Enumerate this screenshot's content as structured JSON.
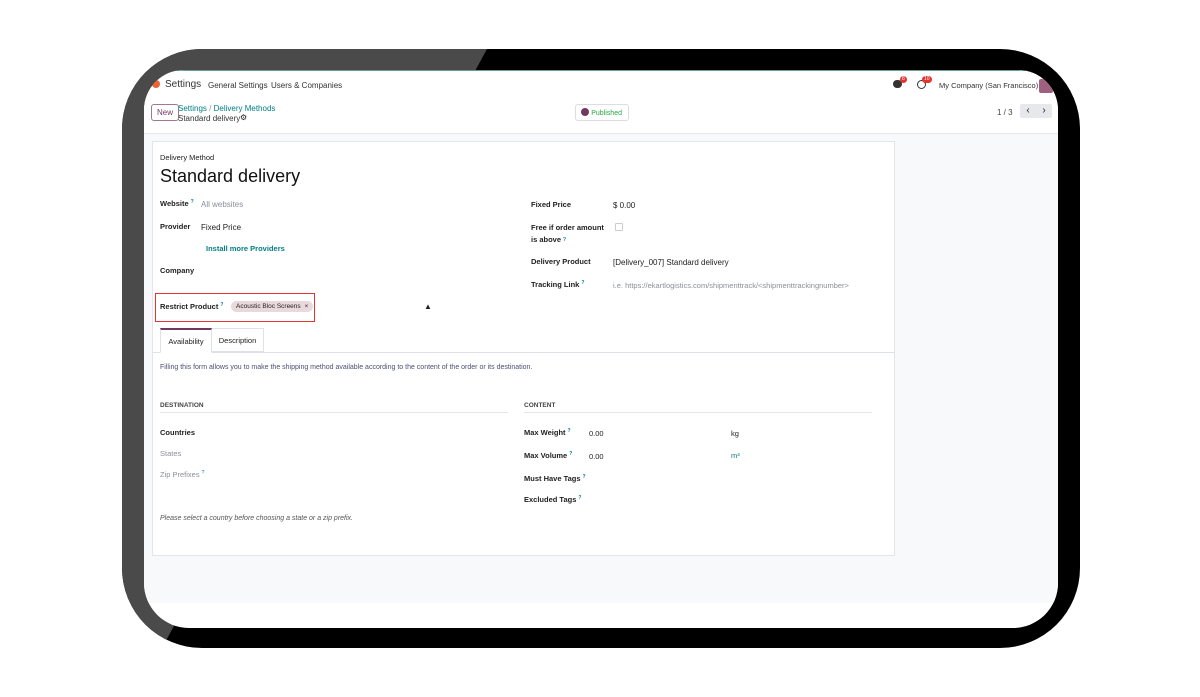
{
  "navbar": {
    "app": "Settings",
    "menu": [
      "General Settings",
      "Users & Companies"
    ],
    "messages_count": "8",
    "activity_count": "10",
    "company": "My Company (San Francisco)"
  },
  "control": {
    "new_label": "New",
    "breadcrumb": [
      "Settings",
      "Delivery Methods"
    ],
    "record": "Standard delivery",
    "published_label": "Published",
    "pager": "1 / 3"
  },
  "form": {
    "kind": "Delivery Method",
    "title": "Standard delivery",
    "website_label": "Website",
    "website_placeholder": "All websites",
    "provider_label": "Provider",
    "provider_value": "Fixed Price",
    "install_link": "Install more Providers",
    "company_label": "Company",
    "restrict_label": "Restrict Product",
    "restrict_tag": "Acoustic Bloc Screens",
    "fixed_price_label": "Fixed Price",
    "fixed_price_value": "$ 0.00",
    "free_label": "Free if order amount is above",
    "free_checked": false,
    "delivery_product_label": "Delivery Product",
    "delivery_product_value": "[Delivery_007] Standard delivery",
    "tracking_label": "Tracking Link",
    "tracking_placeholder": "i.e. https://ekartlogistics.com/shipmenttrack/<shipmenttrackingnumber>"
  },
  "tabs": [
    {
      "label": "Availability",
      "active": true
    },
    {
      "label": "Description",
      "active": false
    }
  ],
  "availability": {
    "intro": "Filling this form allows you to make the shipping method available according to the content of the order or its destination.",
    "destination_header": "DESTINATION",
    "countries": "Countries",
    "states": "States",
    "zip": "Zip Prefixes",
    "note": "Please select a country before choosing a state or a zip prefix.",
    "content_header": "CONTENT",
    "max_weight_label": "Max Weight",
    "max_weight": "0.00",
    "weight_unit": "kg",
    "max_volume_label": "Max Volume",
    "max_volume": "0.00",
    "volume_unit": "m³",
    "must_tags": "Must Have Tags",
    "excluded_tags": "Excluded Tags"
  },
  "colors": {
    "accent": "#017e84",
    "brand": "#71395f",
    "highlight": "#e3342f"
  }
}
